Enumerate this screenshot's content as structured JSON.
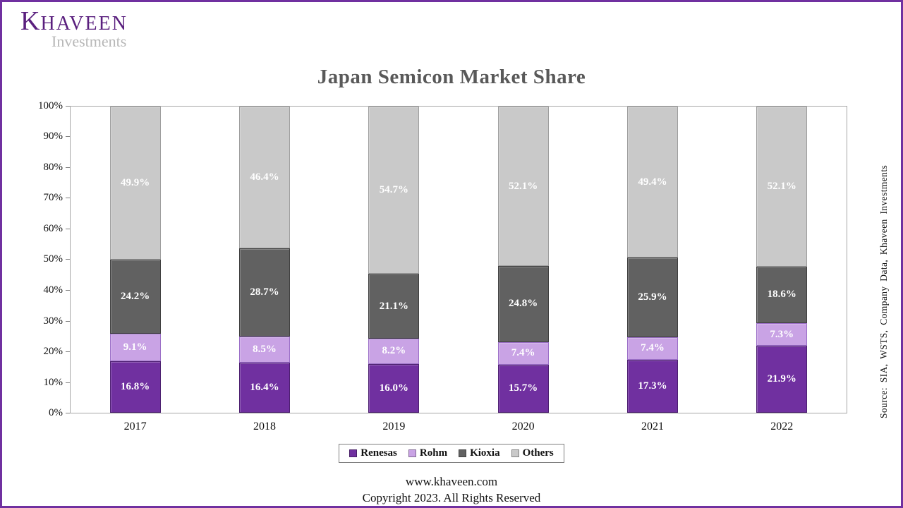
{
  "brand": {
    "k": "K",
    "rest": "HAVEEN",
    "subtitle": "Investments",
    "accent_color": "#7030A0"
  },
  "chart_data": {
    "type": "bar",
    "stacked": true,
    "title": "Japan Semicon Market Share",
    "categories": [
      "2017",
      "2018",
      "2019",
      "2020",
      "2021",
      "2022"
    ],
    "series": [
      {
        "name": "Renesas",
        "color": "#7030A0",
        "border": "#4C1F70",
        "values": [
          16.8,
          16.4,
          16.0,
          15.7,
          17.3,
          21.9
        ]
      },
      {
        "name": "Rohm",
        "color": "#C9A3E5",
        "border": "#9B6FC7",
        "values": [
          9.1,
          8.5,
          8.2,
          7.4,
          7.4,
          7.3
        ]
      },
      {
        "name": "Kioxia",
        "color": "#616161",
        "border": "#3F3F3F",
        "values": [
          24.2,
          28.7,
          21.1,
          24.8,
          25.9,
          18.6
        ]
      },
      {
        "name": "Others",
        "color": "#C9C9C9",
        "border": "#9E9E9E",
        "values": [
          49.9,
          46.4,
          54.7,
          52.1,
          49.4,
          52.1
        ]
      }
    ],
    "y_ticks": [
      "100%",
      "90%",
      "80%",
      "70%",
      "60%",
      "50%",
      "40%",
      "30%",
      "20%",
      "10%",
      "0%"
    ],
    "ylim": [
      0,
      100
    ],
    "value_label_suffix": "%",
    "legend_position": "bottom",
    "grid": false
  },
  "source_note": "Source:  SIA,  WSTS,  Company  Data,  Khaveen  Investments",
  "footer": {
    "website": "www.khaveen.com",
    "copyright": "Copyright 2023.  All  Rights Reserved"
  }
}
